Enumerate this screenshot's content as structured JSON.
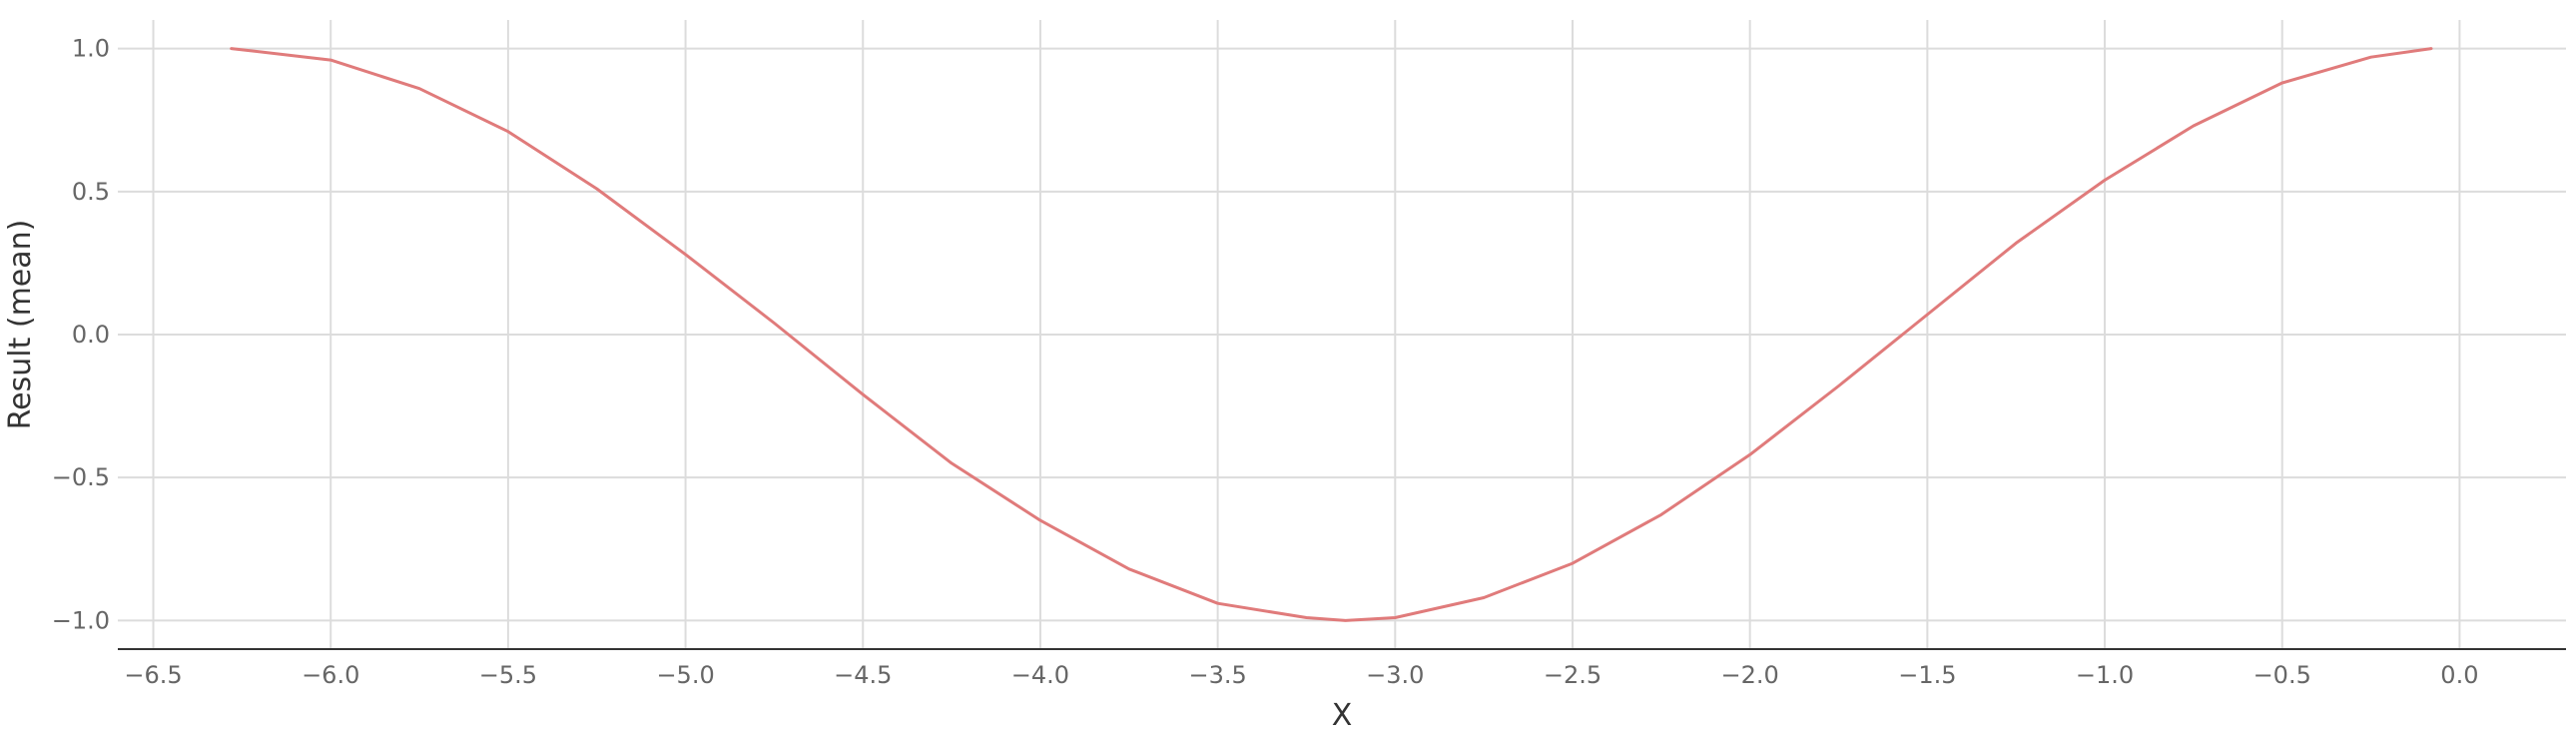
{
  "chart_data": {
    "type": "line",
    "title": "",
    "xlabel": "X",
    "ylabel": "Result (mean)",
    "xlim": [
      -6.6,
      0.3
    ],
    "ylim": [
      -1.1,
      1.1
    ],
    "x_ticks": [
      -6.5,
      -6.0,
      -5.5,
      -5.0,
      -4.5,
      -4.0,
      -3.5,
      -3.0,
      -2.5,
      -2.0,
      -1.5,
      -1.0,
      -0.5,
      0.0
    ],
    "x_tick_labels": [
      "−6.5",
      "−6.0",
      "−5.5",
      "−5.0",
      "−4.5",
      "−4.0",
      "−3.5",
      "−3.0",
      "−2.5",
      "−2.0",
      "−1.5",
      "−1.0",
      "−0.5",
      "0.0"
    ],
    "y_ticks": [
      1.0,
      0.5,
      0.0,
      -0.5,
      -1.0
    ],
    "y_tick_labels": [
      "1.0",
      "0.5",
      "0.0",
      "−0.5",
      "−1.0"
    ],
    "grid": true,
    "colors": {
      "series": "#e07b7b"
    },
    "series": [
      {
        "x": [
          -6.28,
          -6.0,
          -5.75,
          -5.5,
          -5.25,
          -5.0,
          -4.75,
          -4.5,
          -4.25,
          -4.0,
          -3.75,
          -3.5,
          -3.25,
          -3.14,
          -3.0,
          -2.75,
          -2.5,
          -2.25,
          -2.0,
          -1.75,
          -1.5,
          -1.25,
          -1.0,
          -0.75,
          -0.5,
          -0.25,
          -0.08
        ],
        "y": [
          1.0,
          0.96,
          0.86,
          0.71,
          0.51,
          0.28,
          0.04,
          -0.21,
          -0.45,
          -0.65,
          -0.82,
          -0.94,
          -0.99,
          -1.0,
          -0.99,
          -0.92,
          -0.8,
          -0.63,
          -0.42,
          -0.18,
          0.07,
          0.32,
          0.54,
          0.73,
          0.88,
          0.97,
          1.0
        ]
      }
    ]
  }
}
